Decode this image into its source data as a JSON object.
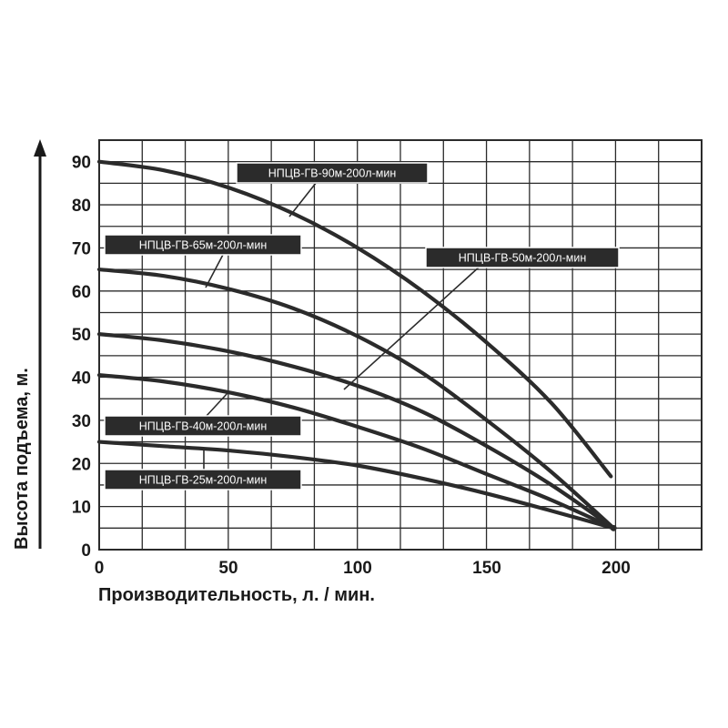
{
  "chart_data": {
    "type": "line",
    "xlabel": "Производительность, л. / мин.",
    "ylabel": "Высота подъема, м.",
    "xlim": [
      0,
      233
    ],
    "ylim": [
      0,
      95
    ],
    "x_ticks": [
      "0",
      "50",
      "100",
      "150",
      "200"
    ],
    "y_ticks": [
      "0",
      "10",
      "20",
      "30",
      "40",
      "50",
      "60",
      "70",
      "80",
      "90"
    ],
    "grid": true,
    "colors": {
      "line": "#2b2b2b",
      "badge_bg": "#2b2b2b",
      "badge_text": "#ffffff",
      "grid": "#2b2b2b"
    },
    "series": [
      {
        "name": "НПЦВ-ГВ-90м-200л-мин",
        "x": [
          0,
          25,
          50,
          75,
          100,
          125,
          150,
          175,
          198
        ],
        "y": [
          90,
          88,
          84,
          78,
          70,
          60,
          48,
          34,
          17
        ]
      },
      {
        "name": "НПЦВ-ГВ-65м-200л-мин",
        "x": [
          0,
          25,
          50,
          75,
          100,
          125,
          150,
          175,
          199
        ],
        "y": [
          65,
          63.5,
          60.5,
          56,
          49.5,
          41,
          30,
          18,
          5
        ]
      },
      {
        "name": "НПЦВ-ГВ-50м-200л-мин",
        "x": [
          0,
          25,
          50,
          75,
          100,
          125,
          150,
          175,
          199
        ],
        "y": [
          50,
          48.5,
          46,
          42.5,
          38,
          32,
          24,
          15,
          5
        ]
      },
      {
        "name": "НПЦВ-ГВ-40м-200л-мин",
        "x": [
          0,
          25,
          50,
          75,
          100,
          125,
          150,
          175,
          199
        ],
        "y": [
          40.5,
          39,
          36.5,
          33,
          28.5,
          23.5,
          17.5,
          11.5,
          5
        ]
      },
      {
        "name": "НПЦВ-ГВ-25м-200л-мин",
        "x": [
          0,
          25,
          50,
          75,
          100,
          125,
          150,
          175,
          199
        ],
        "y": [
          25,
          24,
          23,
          21.5,
          19.5,
          16.5,
          13,
          9,
          5
        ]
      }
    ]
  }
}
